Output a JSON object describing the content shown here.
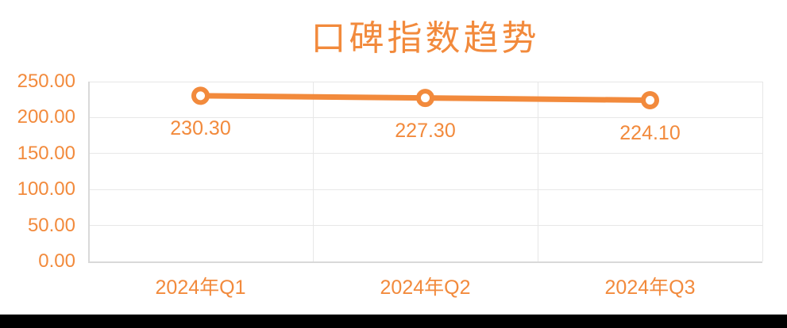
{
  "colors": {
    "accent": "#F28A3C",
    "gridline": "#E7E7E7",
    "axis_line": "#D9D9D9",
    "marker_fill": "#FFFFFF",
    "background": "#FFFFFF",
    "footer_bar": "#000000"
  },
  "chart_data": {
    "type": "line",
    "title": "口碑指数趋势",
    "categories": [
      "2024年Q1",
      "2024年Q2",
      "2024年Q3"
    ],
    "values": [
      230.3,
      227.3,
      224.1
    ],
    "value_labels": [
      "230.30",
      "227.30",
      "224.10"
    ],
    "xlabel": "",
    "ylabel": "",
    "y_axis": {
      "min": 0,
      "max": 250,
      "step": 50,
      "decimals": 2,
      "tick_labels": [
        "0.00",
        "50.00",
        "100.00",
        "150.00",
        "200.00",
        "250.00"
      ]
    },
    "grid": true,
    "legend": "none",
    "data_labels_visible": true,
    "line_style": {
      "stroke_width": 7,
      "marker": "circle-open"
    }
  }
}
